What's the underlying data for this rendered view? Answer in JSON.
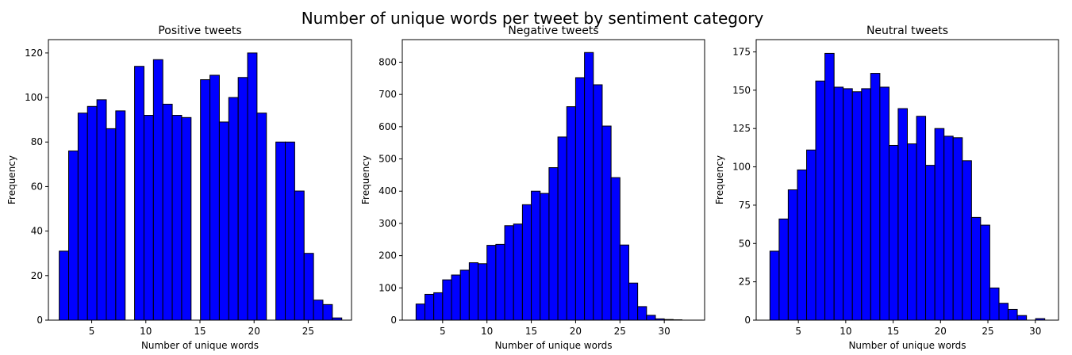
{
  "figure": {
    "title": "Number of unique words per tweet by sentiment category"
  },
  "chart_data": [
    {
      "type": "bar",
      "title": "Positive tweets",
      "xlabel": "Number of unique words",
      "ylabel": "Frequency",
      "bar_color": "#0000ff",
      "edge_color": "#000000",
      "xlim": [
        1.0,
        29.0
      ],
      "ylim": [
        0,
        126
      ],
      "xticks": [
        5,
        10,
        15,
        20,
        25
      ],
      "yticks": [
        0,
        20,
        40,
        60,
        80,
        100,
        120
      ],
      "bins": [
        {
          "x0": 2.0,
          "x1": 2.87,
          "value": 31
        },
        {
          "x0": 2.87,
          "x1": 3.74,
          "value": 76
        },
        {
          "x0": 3.74,
          "x1": 4.61,
          "value": 93
        },
        {
          "x0": 4.61,
          "x1": 5.48,
          "value": 96
        },
        {
          "x0": 5.48,
          "x1": 6.35,
          "value": 99
        },
        {
          "x0": 6.35,
          "x1": 7.22,
          "value": 86
        },
        {
          "x0": 7.22,
          "x1": 8.09,
          "value": 94
        },
        {
          "x0": 8.09,
          "x1": 8.96,
          "value": 0
        },
        {
          "x0": 8.96,
          "x1": 9.83,
          "value": 114
        },
        {
          "x0": 9.83,
          "x1": 10.7,
          "value": 92
        },
        {
          "x0": 10.7,
          "x1": 11.57,
          "value": 117
        },
        {
          "x0": 11.57,
          "x1": 12.44,
          "value": 97
        },
        {
          "x0": 12.44,
          "x1": 13.31,
          "value": 92
        },
        {
          "x0": 13.31,
          "x1": 14.18,
          "value": 91
        },
        {
          "x0": 14.18,
          "x1": 15.05,
          "value": 0
        },
        {
          "x0": 15.05,
          "x1": 15.92,
          "value": 108
        },
        {
          "x0": 15.92,
          "x1": 16.79,
          "value": 110
        },
        {
          "x0": 16.79,
          "x1": 17.66,
          "value": 89
        },
        {
          "x0": 17.66,
          "x1": 18.53,
          "value": 100
        },
        {
          "x0": 18.53,
          "x1": 19.4,
          "value": 109
        },
        {
          "x0": 19.4,
          "x1": 20.27,
          "value": 120
        },
        {
          "x0": 20.27,
          "x1": 21.14,
          "value": 93
        },
        {
          "x0": 21.14,
          "x1": 22.01,
          "value": 0
        },
        {
          "x0": 22.01,
          "x1": 22.88,
          "value": 80
        },
        {
          "x0": 22.88,
          "x1": 23.75,
          "value": 80
        },
        {
          "x0": 23.75,
          "x1": 24.62,
          "value": 58
        },
        {
          "x0": 24.62,
          "x1": 25.49,
          "value": 30
        },
        {
          "x0": 25.49,
          "x1": 26.36,
          "value": 9
        },
        {
          "x0": 26.36,
          "x1": 27.23,
          "value": 7
        },
        {
          "x0": 27.23,
          "x1": 28.1,
          "value": 1
        }
      ]
    },
    {
      "type": "bar",
      "title": "Negative tweets",
      "xlabel": "Number of unique words",
      "ylabel": "Frequency",
      "bar_color": "#0000ff",
      "edge_color": "#000000",
      "xlim": [
        0.45,
        34.55
      ],
      "ylim": [
        0,
        870
      ],
      "xticks": [
        5,
        10,
        15,
        20,
        25,
        30
      ],
      "yticks": [
        0,
        100,
        200,
        300,
        400,
        500,
        600,
        700,
        800
      ],
      "bins": [
        {
          "x0": 2.0,
          "x1": 3.0,
          "value": 50
        },
        {
          "x0": 3.0,
          "x1": 4.0,
          "value": 80
        },
        {
          "x0": 4.0,
          "x1": 5.0,
          "value": 85
        },
        {
          "x0": 5.0,
          "x1": 6.0,
          "value": 125
        },
        {
          "x0": 6.0,
          "x1": 7.0,
          "value": 140
        },
        {
          "x0": 7.0,
          "x1": 8.0,
          "value": 155
        },
        {
          "x0": 8.0,
          "x1": 9.0,
          "value": 178
        },
        {
          "x0": 9.0,
          "x1": 10.0,
          "value": 175
        },
        {
          "x0": 10.0,
          "x1": 11.0,
          "value": 232
        },
        {
          "x0": 11.0,
          "x1": 12.0,
          "value": 235
        },
        {
          "x0": 12.0,
          "x1": 13.0,
          "value": 293
        },
        {
          "x0": 13.0,
          "x1": 14.0,
          "value": 298
        },
        {
          "x0": 14.0,
          "x1": 15.0,
          "value": 358
        },
        {
          "x0": 15.0,
          "x1": 16.0,
          "value": 400
        },
        {
          "x0": 16.0,
          "x1": 17.0,
          "value": 393
        },
        {
          "x0": 17.0,
          "x1": 18.0,
          "value": 473
        },
        {
          "x0": 18.0,
          "x1": 19.0,
          "value": 568
        },
        {
          "x0": 19.0,
          "x1": 20.0,
          "value": 662
        },
        {
          "x0": 20.0,
          "x1": 21.0,
          "value": 752
        },
        {
          "x0": 21.0,
          "x1": 22.0,
          "value": 830
        },
        {
          "x0": 22.0,
          "x1": 23.0,
          "value": 730
        },
        {
          "x0": 23.0,
          "x1": 24.0,
          "value": 602
        },
        {
          "x0": 24.0,
          "x1": 25.0,
          "value": 442
        },
        {
          "x0": 25.0,
          "x1": 26.0,
          "value": 233
        },
        {
          "x0": 26.0,
          "x1": 27.0,
          "value": 115
        },
        {
          "x0": 27.0,
          "x1": 28.0,
          "value": 42
        },
        {
          "x0": 28.0,
          "x1": 29.0,
          "value": 15
        },
        {
          "x0": 29.0,
          "x1": 30.0,
          "value": 4
        },
        {
          "x0": 30.0,
          "x1": 31.0,
          "value": 2
        },
        {
          "x0": 31.0,
          "x1": 32.0,
          "value": 1
        }
      ]
    },
    {
      "type": "bar",
      "title": "Neutral tweets",
      "xlabel": "Number of unique words",
      "ylabel": "Frequency",
      "bar_color": "#0000ff",
      "edge_color": "#000000",
      "xlim": [
        0.55,
        32.45
      ],
      "ylim": [
        0,
        183
      ],
      "xticks": [
        5,
        10,
        15,
        20,
        25,
        30
      ],
      "yticks": [
        0,
        25,
        50,
        75,
        100,
        125,
        150,
        175
      ],
      "bins": [
        {
          "x0": 2.0,
          "x1": 2.97,
          "value": 45
        },
        {
          "x0": 2.97,
          "x1": 3.93,
          "value": 66
        },
        {
          "x0": 3.93,
          "x1": 4.9,
          "value": 85
        },
        {
          "x0": 4.9,
          "x1": 5.87,
          "value": 98
        },
        {
          "x0": 5.87,
          "x1": 6.83,
          "value": 111
        },
        {
          "x0": 6.83,
          "x1": 7.8,
          "value": 156
        },
        {
          "x0": 7.8,
          "x1": 8.77,
          "value": 174
        },
        {
          "x0": 8.77,
          "x1": 9.73,
          "value": 152
        },
        {
          "x0": 9.73,
          "x1": 10.7,
          "value": 151
        },
        {
          "x0": 10.7,
          "x1": 11.67,
          "value": 149
        },
        {
          "x0": 11.67,
          "x1": 12.63,
          "value": 151
        },
        {
          "x0": 12.63,
          "x1": 13.6,
          "value": 161
        },
        {
          "x0": 13.6,
          "x1": 14.57,
          "value": 152
        },
        {
          "x0": 14.57,
          "x1": 15.53,
          "value": 114
        },
        {
          "x0": 15.53,
          "x1": 16.5,
          "value": 138
        },
        {
          "x0": 16.5,
          "x1": 17.47,
          "value": 115
        },
        {
          "x0": 17.47,
          "x1": 18.43,
          "value": 133
        },
        {
          "x0": 18.43,
          "x1": 19.4,
          "value": 101
        },
        {
          "x0": 19.4,
          "x1": 20.37,
          "value": 125
        },
        {
          "x0": 20.37,
          "x1": 21.33,
          "value": 120
        },
        {
          "x0": 21.33,
          "x1": 22.3,
          "value": 119
        },
        {
          "x0": 22.3,
          "x1": 23.27,
          "value": 104
        },
        {
          "x0": 23.27,
          "x1": 24.23,
          "value": 67
        },
        {
          "x0": 24.23,
          "x1": 25.2,
          "value": 62
        },
        {
          "x0": 25.2,
          "x1": 26.17,
          "value": 21
        },
        {
          "x0": 26.17,
          "x1": 27.13,
          "value": 11
        },
        {
          "x0": 27.13,
          "x1": 28.1,
          "value": 7
        },
        {
          "x0": 28.1,
          "x1": 29.07,
          "value": 3
        },
        {
          "x0": 29.07,
          "x1": 30.03,
          "value": 0
        },
        {
          "x0": 30.03,
          "x1": 31.0,
          "value": 1
        }
      ]
    }
  ]
}
